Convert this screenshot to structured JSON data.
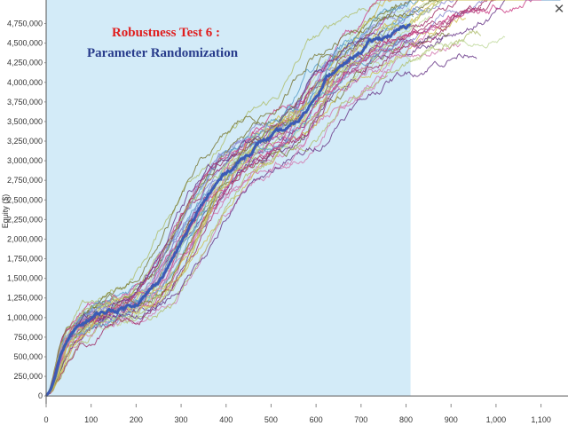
{
  "close_label": "✕",
  "colors": {
    "main": "#3b5bb5",
    "fill": "#d3ebf8",
    "axis": "#555555",
    "runs": [
      "#c2dba0",
      "#8a8ad0",
      "#a0306a",
      "#d27ab0",
      "#7a7a3a",
      "#b0c070",
      "#5aa0c8",
      "#cc4488",
      "#6a3a8a",
      "#d0c050"
    ]
  },
  "chart_data": {
    "type": "line",
    "title": "Robustness Test 6 :",
    "subtitle": "Parameter Randomization",
    "xlabel": "",
    "ylabel": "Equity ($)",
    "xlim": [
      0,
      1160
    ],
    "ylim": [
      -100000,
      5050000
    ],
    "x_ticks": [
      0,
      100,
      200,
      300,
      400,
      500,
      600,
      700,
      800,
      900,
      1000,
      1100
    ],
    "x_tick_labels": [
      "0",
      "100",
      "200",
      "300",
      "400",
      "500",
      "600",
      "700",
      "800",
      "900",
      "1,000",
      "1,100"
    ],
    "y_ticks": [
      0,
      250000,
      500000,
      750000,
      1000000,
      1250000,
      1500000,
      1750000,
      2000000,
      2250000,
      2500000,
      2750000,
      3000000,
      3250000,
      3500000,
      3750000,
      4000000,
      4250000,
      4500000,
      4750000
    ],
    "y_tick_labels": [
      "0",
      "250,000",
      "500,000",
      "750,000",
      "1,000,000",
      "1,250,000",
      "1,500,000",
      "1,750,000",
      "2,000,000",
      "2,250,000",
      "2,500,000",
      "2,750,000",
      "3,000,000",
      "3,250,000",
      "3,500,000",
      "3,750,000",
      "4,000,000",
      "4,250,000",
      "4,500,000",
      "4,750,000"
    ],
    "grid": false,
    "legend": "none",
    "shaded_region": {
      "x": [
        0,
        810
      ]
    },
    "main_series": {
      "x": [
        0,
        10,
        20,
        30,
        40,
        50,
        60,
        70,
        80,
        90,
        100,
        120,
        140,
        160,
        180,
        200,
        220,
        240,
        260,
        280,
        300,
        320,
        340,
        360,
        380,
        400,
        420,
        440,
        460,
        480,
        500,
        520,
        540,
        560,
        580,
        600,
        620,
        640,
        660,
        680,
        700,
        720,
        740,
        760,
        780,
        800,
        810
      ],
      "y": [
        0,
        80000,
        250000,
        450000,
        620000,
        720000,
        800000,
        850000,
        900000,
        950000,
        1000000,
        1050000,
        1080000,
        1100000,
        1150000,
        1200000,
        1280000,
        1400000,
        1550000,
        1750000,
        1950000,
        2150000,
        2350000,
        2550000,
        2700000,
        2850000,
        2950000,
        3050000,
        3150000,
        3250000,
        3300000,
        3350000,
        3400000,
        3500000,
        3650000,
        3850000,
        4050000,
        4150000,
        4200000,
        4300000,
        4400000,
        4500000,
        4550000,
        4600000,
        4650000,
        4700000,
        4750000
      ]
    },
    "run_count": 40,
    "run_x_end": {
      "min": 740,
      "max": 1160
    }
  }
}
